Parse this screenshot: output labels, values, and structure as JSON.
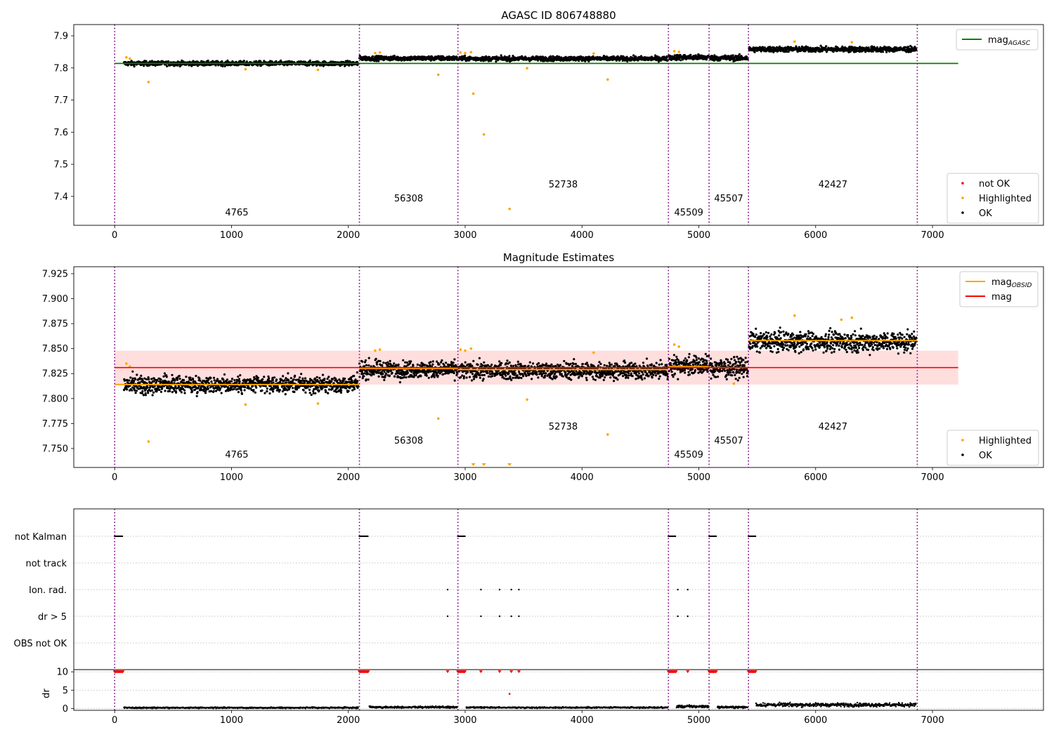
{
  "figure": {
    "title": "AGASC ID 806748880",
    "obsid_boundaries": [
      0,
      2095,
      2938,
      4740,
      5088,
      5425,
      6870
    ],
    "obsids": [
      {
        "label": "4765",
        "x": 1045,
        "tier": 2
      },
      {
        "label": "56308",
        "x": 2516,
        "tier": 1
      },
      {
        "label": "52738",
        "x": 3839,
        "tier": 0
      },
      {
        "label": "45509",
        "x": 4914,
        "tier": 2
      },
      {
        "label": "45507",
        "x": 5256,
        "tier": 1
      },
      {
        "label": "42427",
        "x": 6148,
        "tier": 0
      }
    ],
    "colors": {
      "ok": "#000000",
      "highlighted": "#ffa500",
      "not_ok": "#ff0000",
      "agasc_line": "#008000",
      "obsid_line": "#ffa500",
      "mag_line": "#ff0000",
      "band": "#ffdede",
      "boundary": "#800080",
      "grid": "#b0b0b0"
    }
  },
  "chart_data": [
    {
      "type": "scatter",
      "title": "AGASC ID 806748880",
      "xlabel": "",
      "ylabel": "",
      "xlim": [
        -350,
        7950
      ],
      "ylim": [
        7.31,
        7.935
      ],
      "xticks": [
        0,
        1000,
        2000,
        3000,
        4000,
        5000,
        6000,
        7000
      ],
      "yticks": [
        7.4,
        7.5,
        7.6,
        7.7,
        7.8,
        7.9
      ],
      "ytick_decimals": 1,
      "reference_lines": [
        {
          "name": "mag_AGASC",
          "y": 7.814,
          "x": [
            0,
            7220
          ],
          "color": "#008000"
        }
      ],
      "segments": [
        {
          "x": [
            80,
            2085
          ],
          "level": 7.814,
          "spread": 0.005
        },
        {
          "x": [
            2095,
            2935
          ],
          "level": 7.83,
          "spread": 0.005
        },
        {
          "x": [
            2945,
            4735
          ],
          "level": 7.829,
          "spread": 0.005
        },
        {
          "x": [
            4745,
            5085
          ],
          "level": 7.833,
          "spread": 0.006
        },
        {
          "x": [
            5095,
            5420
          ],
          "level": 7.831,
          "spread": 0.006
        },
        {
          "x": [
            5430,
            6860
          ],
          "level": 7.858,
          "spread": 0.006
        }
      ],
      "highlighted_points": [
        [
          100,
          7.833
        ],
        [
          130,
          7.829
        ],
        [
          290,
          7.756
        ],
        [
          1120,
          7.796
        ],
        [
          1740,
          7.794
        ],
        [
          2230,
          7.846
        ],
        [
          2270,
          7.848
        ],
        [
          2770,
          7.779
        ],
        [
          2960,
          7.848
        ],
        [
          3000,
          7.846
        ],
        [
          3050,
          7.849
        ],
        [
          3070,
          7.72
        ],
        [
          3160,
          7.593
        ],
        [
          3380,
          7.361
        ],
        [
          3530,
          7.799
        ],
        [
          4220,
          7.764
        ],
        [
          4100,
          7.845
        ],
        [
          4790,
          7.852
        ],
        [
          4830,
          7.85
        ],
        [
          5820,
          7.882
        ],
        [
          6310,
          7.88
        ]
      ],
      "legend": {
        "position": "top-right",
        "entries": [
          {
            "label": "mag_AGASC",
            "kind": "line",
            "color": "#008000"
          }
        ]
      },
      "legend2": {
        "position": "lower-right",
        "entries": [
          {
            "label": "not OK",
            "kind": "dot",
            "color": "#ff0000"
          },
          {
            "label": "Highlighted",
            "kind": "dot",
            "color": "#ffa500"
          },
          {
            "label": "OK",
            "kind": "dot",
            "color": "#000000"
          }
        ]
      }
    },
    {
      "type": "scatter",
      "title": "Magnitude Estimates",
      "xlabel": "",
      "ylabel": "",
      "xlim": [
        -350,
        7950
      ],
      "ylim": [
        7.731,
        7.932
      ],
      "xticks": [
        0,
        1000,
        2000,
        3000,
        4000,
        5000,
        6000,
        7000
      ],
      "yticks": [
        7.75,
        7.775,
        7.8,
        7.825,
        7.85,
        7.875,
        7.9,
        7.925
      ],
      "ytick_decimals": 3,
      "mag": {
        "value": 7.831,
        "band": [
          7.814,
          7.848
        ],
        "x": [
          0,
          7220
        ]
      },
      "obsid_mags": [
        {
          "x": [
            0,
            2095
          ],
          "value": 7.814
        },
        {
          "x": [
            2095,
            2938
          ],
          "value": 7.83
        },
        {
          "x": [
            2938,
            4740
          ],
          "value": 7.829
        },
        {
          "x": [
            4740,
            5088
          ],
          "value": 7.832
        },
        {
          "x": [
            5088,
            5425
          ],
          "value": 7.831
        },
        {
          "x": [
            5425,
            6870
          ],
          "value": 7.858
        }
      ],
      "segments": [
        {
          "x": [
            80,
            2085
          ],
          "level": 7.814,
          "spread": 0.006
        },
        {
          "x": [
            2095,
            2935
          ],
          "level": 7.829,
          "spread": 0.006
        },
        {
          "x": [
            2945,
            4735
          ],
          "level": 7.828,
          "spread": 0.006
        },
        {
          "x": [
            4745,
            5085
          ],
          "level": 7.833,
          "spread": 0.007
        },
        {
          "x": [
            5095,
            5420
          ],
          "level": 7.831,
          "spread": 0.007
        },
        {
          "x": [
            5430,
            6860
          ],
          "level": 7.857,
          "spread": 0.007
        }
      ],
      "highlighted_points": [
        [
          100,
          7.835
        ],
        [
          130,
          7.832
        ],
        [
          290,
          7.757
        ],
        [
          1120,
          7.794
        ],
        [
          1740,
          7.795
        ],
        [
          2230,
          7.848
        ],
        [
          2270,
          7.849
        ],
        [
          2770,
          7.78
        ],
        [
          2960,
          7.849
        ],
        [
          3000,
          7.848
        ],
        [
          3050,
          7.85
        ],
        [
          3530,
          7.799
        ],
        [
          4220,
          7.764
        ],
        [
          4100,
          7.846
        ],
        [
          4790,
          7.854
        ],
        [
          4830,
          7.852
        ],
        [
          5300,
          7.815
        ],
        [
          5820,
          7.883
        ],
        [
          6220,
          7.879
        ],
        [
          6310,
          7.881
        ]
      ],
      "clipped_points": [
        3070,
        3160,
        3380
      ],
      "legend": {
        "position": "top-right",
        "entries": [
          {
            "label": "mag_OBSID",
            "kind": "line",
            "color": "#ffa500"
          },
          {
            "label": "mag",
            "kind": "line",
            "color": "#ff0000"
          }
        ]
      },
      "legend2": {
        "position": "lower-right",
        "entries": [
          {
            "label": "Highlighted",
            "kind": "dot",
            "color": "#ffa500"
          },
          {
            "label": "OK",
            "kind": "dot",
            "color": "#000000"
          }
        ]
      }
    },
    {
      "type": "scatter",
      "title": "",
      "xlabel": "",
      "xlim": [
        -350,
        7950
      ],
      "xticks": [
        0,
        1000,
        2000,
        3000,
        4000,
        5000,
        6000,
        7000
      ],
      "flag_rows": [
        "not Kalman",
        "not track",
        "Ion. rad.",
        "dr > 5",
        "OBS not OK"
      ],
      "flags": {
        "not Kalman": [
          [
            0,
            70
          ],
          [
            2095,
            2170
          ],
          [
            2938,
            3000
          ],
          [
            4740,
            4805
          ],
          [
            5088,
            5150
          ],
          [
            5425,
            5485
          ]
        ],
        "not track": [],
        "Ion. rad.": [
          2850,
          3135,
          3295,
          3395,
          3460,
          4820,
          4905
        ],
        "dr > 5": [
          2850,
          3135,
          3295,
          3395,
          3460,
          4820,
          4905
        ],
        "OBS not OK": []
      },
      "dr": {
        "ylabel": "dr",
        "yticks": [
          0,
          5,
          10
        ],
        "ylim": [
          -0.5,
          10.6
        ],
        "clipped_at_10": [
          [
            0,
            70
          ],
          [
            2095,
            2170
          ],
          [
            2938,
            3000
          ],
          [
            4740,
            4805
          ],
          [
            5088,
            5150
          ],
          [
            5425,
            5485
          ]
        ],
        "clipped_single": [
          2850,
          3135,
          3295,
          3395,
          3460,
          4905
        ],
        "outlier": [
          [
            3380,
            4
          ]
        ],
        "segments": [
          {
            "x": [
              80,
              2085
            ],
            "level": 0.2,
            "spread": 0.12
          },
          {
            "x": [
              2180,
              2935
            ],
            "level": 0.35,
            "spread": 0.18
          },
          {
            "x": [
              3010,
              4735
            ],
            "level": 0.25,
            "spread": 0.12
          },
          {
            "x": [
              4810,
              5085
            ],
            "level": 0.55,
            "spread": 0.25
          },
          {
            "x": [
              5160,
              5420
            ],
            "level": 0.35,
            "spread": 0.18
          },
          {
            "x": [
              5490,
              6860
            ],
            "level": 1.0,
            "spread": 0.35
          }
        ]
      }
    }
  ]
}
